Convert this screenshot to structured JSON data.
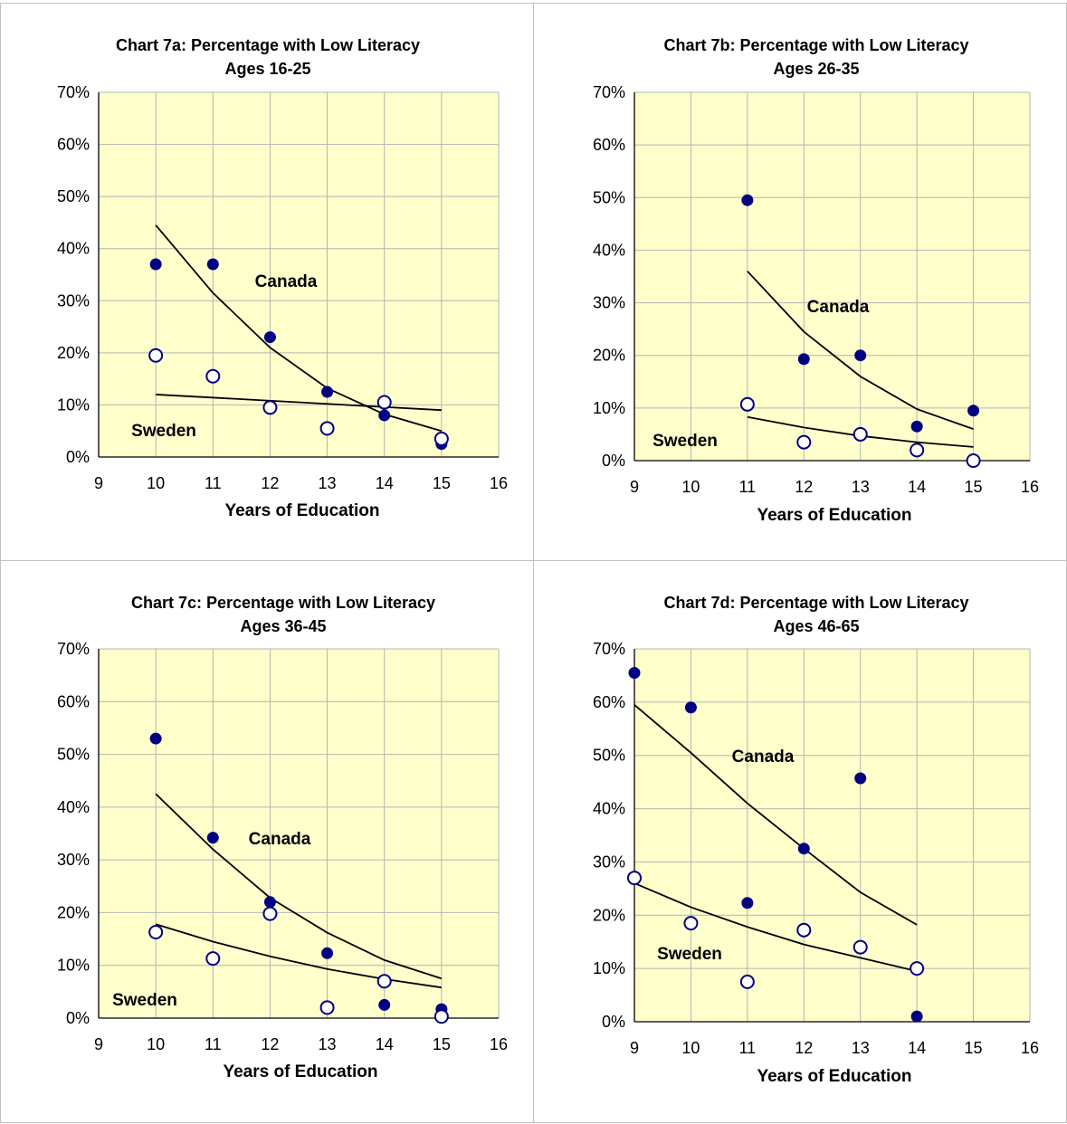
{
  "colors": {
    "plot_background": "#ffffcc",
    "grid": "#b4b4b4",
    "canada_marker": "#000080",
    "sweden_marker_stroke": "#000080",
    "sweden_marker_fill": "#ffffff",
    "trend_line": "#000000"
  },
  "chart_data": [
    {
      "type": "scatter",
      "title": "Chart 7a: Percentage with Low Literacy",
      "subtitle": "Ages 16-25",
      "xlabel": "Years of Education",
      "ylabel": "",
      "xlim": [
        9,
        16
      ],
      "ylim": [
        0,
        0.7
      ],
      "x_ticks": [
        "9",
        "10",
        "11",
        "12",
        "13",
        "14",
        "15",
        "16"
      ],
      "y_ticks": [
        "0%",
        "10%",
        "20%",
        "30%",
        "40%",
        "50%",
        "60%",
        "70%"
      ],
      "grid": true,
      "series_labels": {
        "canada": "Canada",
        "sweden": "Sweden"
      },
      "series": [
        {
          "name": "Canada",
          "marker": "filled-circle",
          "points": [
            [
              10,
              0.37
            ],
            [
              11,
              0.37
            ],
            [
              12,
              0.23
            ],
            [
              13,
              0.125
            ],
            [
              14,
              0.08
            ],
            [
              15,
              0.025
            ]
          ],
          "trend": [
            [
              10,
              0.445
            ],
            [
              11,
              0.315
            ],
            [
              12,
              0.21
            ],
            [
              13,
              0.132
            ],
            [
              14,
              0.082
            ],
            [
              15,
              0.05
            ]
          ]
        },
        {
          "name": "Sweden",
          "marker": "open-circle",
          "points": [
            [
              10,
              0.195
            ],
            [
              11,
              0.155
            ],
            [
              12,
              0.095
            ],
            [
              13,
              0.055
            ],
            [
              14,
              0.105
            ],
            [
              15,
              0.035
            ]
          ],
          "trend": [
            [
              10,
              0.12
            ],
            [
              15,
              0.09
            ]
          ]
        }
      ]
    },
    {
      "type": "scatter",
      "title": "Chart 7b: Percentage with Low Literacy",
      "subtitle": "Ages 26-35",
      "xlabel": "Years of Education",
      "ylabel": "",
      "xlim": [
        9,
        16
      ],
      "ylim": [
        0,
        0.7
      ],
      "x_ticks": [
        "9",
        "10",
        "11",
        "12",
        "13",
        "14",
        "15",
        "16"
      ],
      "y_ticks": [
        "0%",
        "10%",
        "20%",
        "30%",
        "40%",
        "50%",
        "60%",
        "70%"
      ],
      "grid": true,
      "series_labels": {
        "canada": "Canada",
        "sweden": "Sweden"
      },
      "series": [
        {
          "name": "Canada",
          "marker": "filled-circle",
          "points": [
            [
              11,
              0.495
            ],
            [
              12,
              0.193
            ],
            [
              13,
              0.2
            ],
            [
              14,
              0.065
            ],
            [
              15,
              0.095
            ]
          ],
          "trend": [
            [
              11,
              0.36
            ],
            [
              12,
              0.245
            ],
            [
              13,
              0.16
            ],
            [
              14,
              0.098
            ],
            [
              15,
              0.06
            ]
          ]
        },
        {
          "name": "Sweden",
          "marker": "open-circle",
          "points": [
            [
              11,
              0.107
            ],
            [
              12,
              0.035
            ],
            [
              13,
              0.05
            ],
            [
              14,
              0.02
            ],
            [
              15,
              0.0
            ]
          ],
          "trend": [
            [
              11,
              0.083
            ],
            [
              12,
              0.063
            ],
            [
              13,
              0.047
            ],
            [
              14,
              0.035
            ],
            [
              15,
              0.026
            ]
          ]
        }
      ]
    },
    {
      "type": "scatter",
      "title": "Chart 7c: Percentage with Low Literacy",
      "subtitle": "Ages 36-45",
      "xlabel": "Years of Education",
      "ylabel": "",
      "xlim": [
        9,
        16
      ],
      "ylim": [
        0,
        0.7
      ],
      "x_ticks": [
        "9",
        "10",
        "11",
        "12",
        "13",
        "14",
        "15",
        "16"
      ],
      "y_ticks": [
        "0%",
        "10%",
        "20%",
        "30%",
        "40%",
        "50%",
        "60%",
        "70%"
      ],
      "grid": true,
      "series_labels": {
        "canada": "Canada",
        "sweden": "Sweden"
      },
      "series": [
        {
          "name": "Canada",
          "marker": "filled-circle",
          "points": [
            [
              10,
              0.53
            ],
            [
              11,
              0.342
            ],
            [
              12,
              0.22
            ],
            [
              13,
              0.123
            ],
            [
              14,
              0.025
            ],
            [
              15,
              0.017
            ]
          ],
          "trend": [
            [
              10,
              0.425
            ],
            [
              11,
              0.32
            ],
            [
              12,
              0.228
            ],
            [
              13,
              0.162
            ],
            [
              14,
              0.11
            ],
            [
              15,
              0.075
            ]
          ]
        },
        {
          "name": "Sweden",
          "marker": "open-circle",
          "points": [
            [
              10,
              0.163
            ],
            [
              11,
              0.113
            ],
            [
              12,
              0.198
            ],
            [
              13,
              0.02
            ],
            [
              14,
              0.07
            ],
            [
              15,
              0.003
            ]
          ],
          "trend": [
            [
              10,
              0.178
            ],
            [
              11,
              0.145
            ],
            [
              12,
              0.117
            ],
            [
              13,
              0.093
            ],
            [
              14,
              0.074
            ],
            [
              15,
              0.058
            ]
          ]
        }
      ]
    },
    {
      "type": "scatter",
      "title": "Chart 7d: Percentage with Low Literacy",
      "subtitle": "Ages 46-65",
      "xlabel": "Years of Education",
      "ylabel": "",
      "xlim": [
        9,
        16
      ],
      "ylim": [
        0,
        0.7
      ],
      "x_ticks": [
        "9",
        "10",
        "11",
        "12",
        "13",
        "14",
        "15",
        "16"
      ],
      "y_ticks": [
        "0%",
        "10%",
        "20%",
        "30%",
        "40%",
        "50%",
        "60%",
        "70%"
      ],
      "grid": true,
      "series_labels": {
        "canada": "Canada",
        "sweden": "Sweden"
      },
      "series": [
        {
          "name": "Canada",
          "marker": "filled-circle",
          "points": [
            [
              9,
              0.655
            ],
            [
              10,
              0.59
            ],
            [
              11,
              0.223
            ],
            [
              12,
              0.325
            ],
            [
              13,
              0.457
            ],
            [
              14,
              0.01
            ]
          ],
          "trend": [
            [
              9,
              0.595
            ],
            [
              10,
              0.505
            ],
            [
              11,
              0.41
            ],
            [
              12,
              0.325
            ],
            [
              13,
              0.243
            ],
            [
              14,
              0.182
            ]
          ]
        },
        {
          "name": "Sweden",
          "marker": "open-circle",
          "points": [
            [
              9,
              0.27
            ],
            [
              10,
              0.185
            ],
            [
              11,
              0.075
            ],
            [
              12,
              0.172
            ],
            [
              13,
              0.14
            ],
            [
              14,
              0.1
            ]
          ],
          "trend": [
            [
              9,
              0.26
            ],
            [
              10,
              0.215
            ],
            [
              11,
              0.178
            ],
            [
              12,
              0.145
            ],
            [
              13,
              0.12
            ],
            [
              14,
              0.095
            ]
          ]
        }
      ]
    }
  ]
}
